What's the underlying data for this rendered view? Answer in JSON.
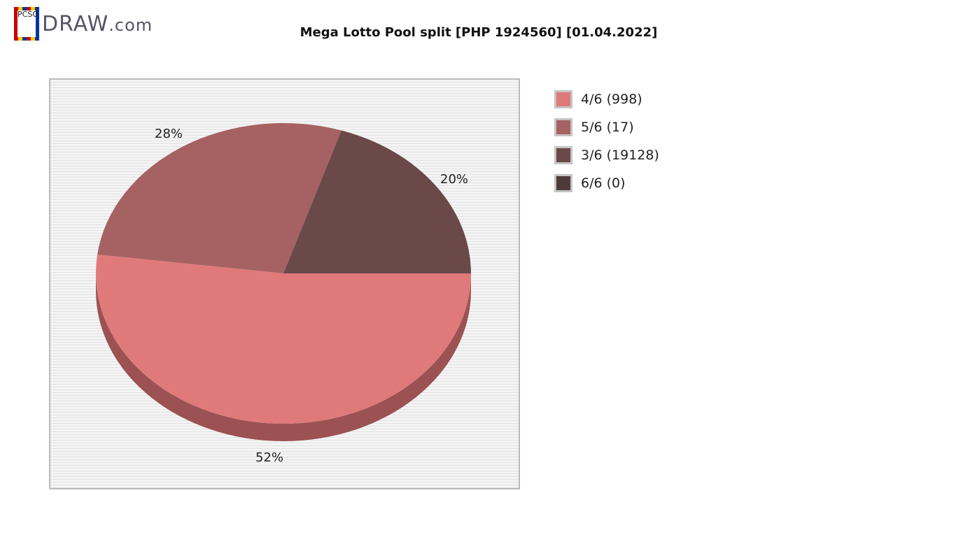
{
  "logo": {
    "text": "DRAW",
    "suffix": ".com",
    "badge": "PCSO"
  },
  "chart_data": {
    "type": "pie",
    "title": "Mega Lotto Pool split [PHP 1924560] [01.04.2022]",
    "slices": [
      {
        "label": "4/6 (998)",
        "percent": 52,
        "color": "#e07a7a",
        "side": "#9c5252"
      },
      {
        "label": "5/6 (17)",
        "percent": 28,
        "color": "#a66262",
        "side": "#7a4444"
      },
      {
        "label": "3/6 (19128)",
        "percent": 20,
        "color": "#6b4949",
        "side": "#4f3434"
      },
      {
        "label": "6/6 (0)",
        "percent": 0,
        "color": "#4f3a3a",
        "side": "#3a2a2a"
      }
    ],
    "data_labels": [
      "52%",
      "28%",
      "20%"
    ],
    "legend_position": "right",
    "background": "striped"
  }
}
